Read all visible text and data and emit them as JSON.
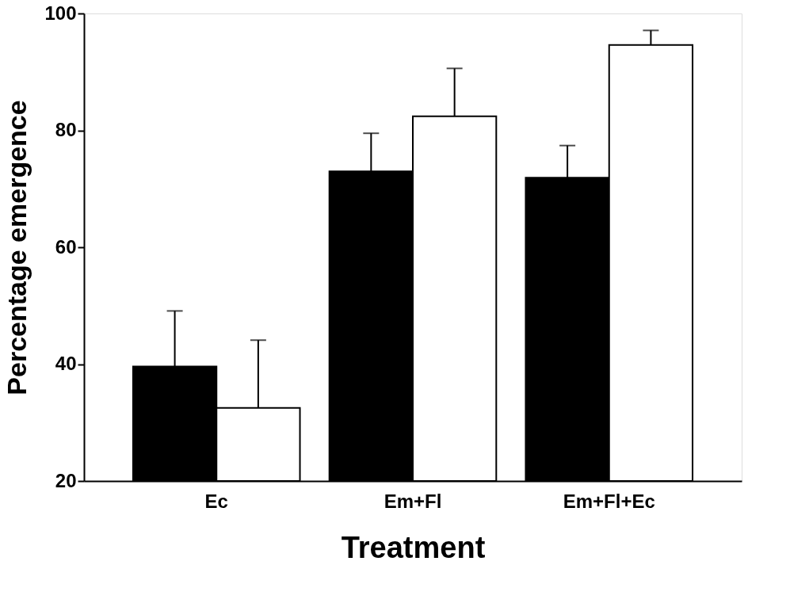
{
  "chart_data": {
    "type": "bar",
    "xlabel": "Treatment",
    "ylabel": "Percentage emergence",
    "categories": [
      "Ec",
      "Em+Fl",
      "Em+Fl+Ec"
    ],
    "series": [
      {
        "color": "#000000",
        "values": [
          39.6,
          73.0,
          71.9
        ],
        "errors": [
          [
            39.6,
            49.1
          ],
          [
            73.0,
            79.5
          ],
          [
            71.9,
            77.4
          ]
        ]
      },
      {
        "color": "#ffffff",
        "values": [
          32.5,
          82.4,
          94.6
        ],
        "errors": [
          [
            32.5,
            44.1
          ],
          [
            82.4,
            90.6
          ],
          [
            94.6,
            97.1
          ]
        ]
      }
    ],
    "ylim": [
      20,
      100
    ],
    "yticks": [
      20,
      40,
      60,
      80,
      100
    ],
    "grid": false
  }
}
